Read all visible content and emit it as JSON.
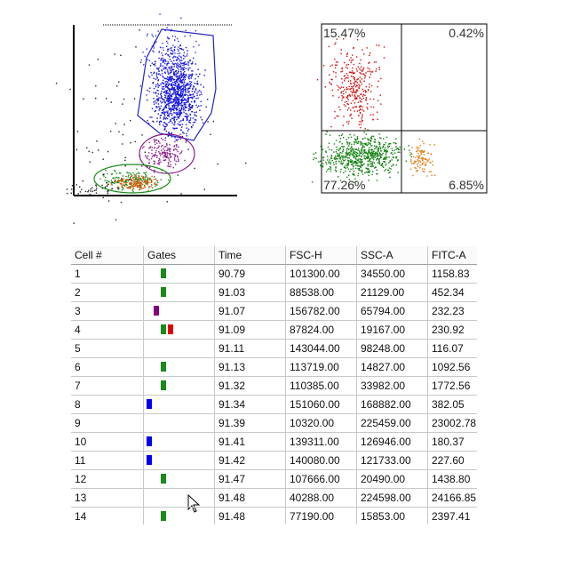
{
  "quadrant_plot": {
    "labels": [
      "15.47%",
      "0.42%",
      "77.26%",
      "6.85%"
    ]
  },
  "table": {
    "columns": [
      "Cell #",
      "Gates",
      "Time",
      "FSC-H",
      "SSC-A",
      "FITC-A"
    ],
    "rows": [
      {
        "cells": [
          "1",
          "90.79",
          "101300.00",
          "34550.00",
          "1158.83"
        ],
        "gates": [
          "green"
        ]
      },
      {
        "cells": [
          "2",
          "91.03",
          "88538.00",
          "21129.00",
          "452.34"
        ],
        "gates": [
          "green"
        ]
      },
      {
        "cells": [
          "3",
          "91.07",
          "156782.00",
          "65794.00",
          "232.23"
        ],
        "gates": [
          "purple"
        ]
      },
      {
        "cells": [
          "4",
          "91.09",
          "87824.00",
          "19167.00",
          "230.92"
        ],
        "gates": [
          "green",
          "red"
        ]
      },
      {
        "cells": [
          "5",
          "91.11",
          "143044.00",
          "98248.00",
          "116.07"
        ],
        "gates": []
      },
      {
        "cells": [
          "6",
          "91.13",
          "113719.00",
          "14827.00",
          "1092.56"
        ],
        "gates": [
          "green"
        ]
      },
      {
        "cells": [
          "7",
          "91.32",
          "110385.00",
          "33982.00",
          "1772.56"
        ],
        "gates": [
          "green"
        ]
      },
      {
        "cells": [
          "8",
          "91.34",
          "151060.00",
          "168882.00",
          "382.05"
        ],
        "gates": [
          "blue"
        ]
      },
      {
        "cells": [
          "9",
          "91.39",
          "10320.00",
          "225459.00",
          "23002.78"
        ],
        "gates": []
      },
      {
        "cells": [
          "10",
          "91.41",
          "139311.00",
          "126946.00",
          "180.37"
        ],
        "gates": [
          "blue"
        ]
      },
      {
        "cells": [
          "11",
          "91.42",
          "140080.00",
          "121733.00",
          "227.60"
        ],
        "gates": [
          "blue"
        ]
      },
      {
        "cells": [
          "12",
          "91.47",
          "107666.00",
          "20490.00",
          "1438.80"
        ],
        "gates": [
          "green"
        ]
      },
      {
        "cells": [
          "13",
          "91.48",
          "40288.00",
          "224598.00",
          "24166.85"
        ],
        "gates": []
      },
      {
        "cells": [
          "14",
          "91.48",
          "77190.00",
          "15853.00",
          "2397.41"
        ],
        "gates": [
          "green"
        ]
      }
    ]
  }
}
